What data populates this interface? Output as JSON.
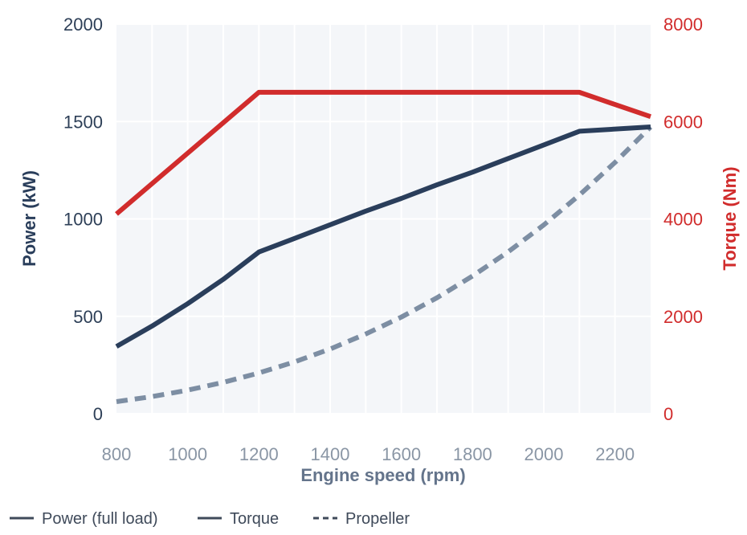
{
  "chart_data": {
    "type": "line",
    "xlabel": "Engine speed (rpm)",
    "ylabel_left": "Power (kW)",
    "ylabel_right": "Torque (Nm)",
    "xlim": [
      800,
      2300
    ],
    "ylim_left": [
      0,
      2000
    ],
    "ylim_right": [
      0,
      8000
    ],
    "x_ticks": [
      800,
      1000,
      1200,
      1400,
      1600,
      1800,
      2000,
      2200
    ],
    "y_left_ticks": [
      0,
      500,
      1000,
      1500,
      2000
    ],
    "y_right_ticks": [
      0,
      2000,
      4000,
      6000,
      8000
    ],
    "grid": true,
    "legend_position": "bottom",
    "series": [
      {
        "name": "Power (full load)",
        "axis": "left",
        "color": "#2a3e5b",
        "style": "solid",
        "x": [
          800,
          900,
          1000,
          1100,
          1200,
          1300,
          1400,
          1500,
          1600,
          1700,
          1800,
          1900,
          2000,
          2100,
          2300
        ],
        "y": [
          345,
          450,
          565,
          690,
          830,
          900,
          970,
          1040,
          1105,
          1175,
          1240,
          1310,
          1380,
          1450,
          1472
        ]
      },
      {
        "name": "Torque",
        "axis": "right",
        "color": "#d12c2c",
        "style": "solid",
        "x": [
          800,
          1200,
          2100,
          2300
        ],
        "y": [
          4100,
          6600,
          6600,
          6100
        ]
      },
      {
        "name": "Propeller",
        "axis": "left",
        "color": "#7d8ea3",
        "style": "dashed",
        "x": [
          800,
          900,
          1000,
          1100,
          1200,
          1300,
          1400,
          1500,
          1600,
          1700,
          1800,
          1900,
          2000,
          2100,
          2200,
          2300
        ],
        "y": [
          62,
          88,
          121,
          161,
          209,
          266,
          332,
          409,
          496,
          595,
          707,
          831,
          969,
          1122,
          1290,
          1472
        ]
      }
    ],
    "legend": [
      {
        "label": "Power (full load)",
        "style": "solid",
        "color": "#3f4a5a"
      },
      {
        "label": "Torque",
        "style": "solid",
        "color": "#3f4a5a"
      },
      {
        "label": "Propeller",
        "style": "dashed",
        "color": "#3f4a5a"
      }
    ]
  }
}
